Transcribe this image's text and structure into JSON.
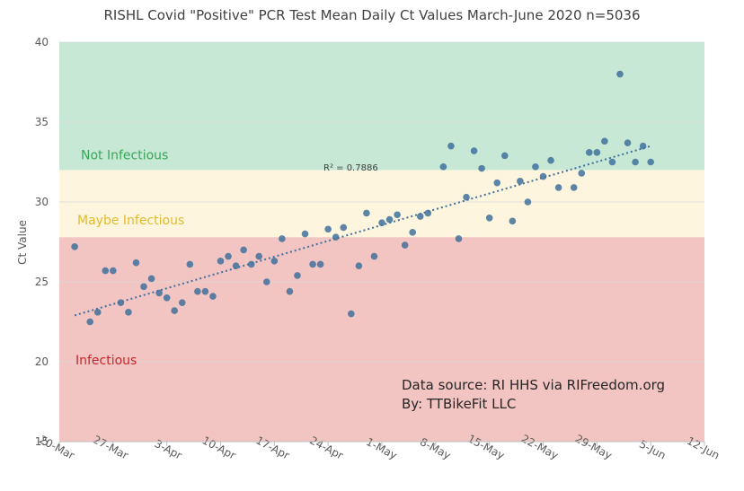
{
  "chart_data": {
    "type": "scatter",
    "title": "RISHL Covid \"Positive\" PCR Test Mean Daily Ct Values March-June 2020 n=5036",
    "y_label": "Ct Value",
    "xlim": [
      "20-Mar",
      "12-Jun"
    ],
    "xticks": [
      "20-Mar",
      "27-Mar",
      "3-Apr",
      "10-Apr",
      "17-Apr",
      "24-Apr",
      "1-May",
      "8-May",
      "15-May",
      "22-May",
      "29-May",
      "5-Jun",
      "12-Jun"
    ],
    "ylim": [
      15,
      40
    ],
    "yticks": [
      15,
      20,
      25,
      30,
      35,
      40
    ],
    "zones": [
      {
        "label": "Infectious",
        "from": 15,
        "to": 27.8,
        "color": "#f2c4c2",
        "label_color": "#c8252c"
      },
      {
        "label": "Maybe Infectious",
        "from": 27.8,
        "to": 32,
        "color": "#fdf5dd",
        "label_color": "#e2bb2a"
      },
      {
        "label": "Not Infectious",
        "from": 32,
        "to": 40,
        "color": "#c6e8d4",
        "label_color": "#3aa65a"
      }
    ],
    "series": [
      {
        "name": "Mean Daily Ct",
        "color": "#41719c",
        "x": [
          "22-Mar",
          "24-Mar",
          "25-Mar",
          "26-Mar",
          "27-Mar",
          "28-Mar",
          "29-Mar",
          "30-Mar",
          "31-Mar",
          "1-Apr",
          "2-Apr",
          "3-Apr",
          "4-Apr",
          "5-Apr",
          "6-Apr",
          "7-Apr",
          "8-Apr",
          "9-Apr",
          "10-Apr",
          "11-Apr",
          "12-Apr",
          "13-Apr",
          "14-Apr",
          "15-Apr",
          "16-Apr",
          "17-Apr",
          "18-Apr",
          "19-Apr",
          "20-Apr",
          "21-Apr",
          "22-Apr",
          "23-Apr",
          "24-Apr",
          "25-Apr",
          "26-Apr",
          "27-Apr",
          "28-Apr",
          "29-Apr",
          "30-Apr",
          "1-May",
          "2-May",
          "3-May",
          "4-May",
          "5-May",
          "6-May",
          "7-May",
          "9-May",
          "10-May",
          "11-May",
          "12-May",
          "13-May",
          "14-May",
          "15-May",
          "16-May",
          "17-May",
          "18-May",
          "19-May",
          "20-May",
          "21-May",
          "22-May",
          "23-May",
          "24-May",
          "26-May",
          "27-May",
          "28-May",
          "29-May",
          "30-May",
          "31-May",
          "1-Jun",
          "2-Jun",
          "3-Jun",
          "4-Jun",
          "5-Jun"
        ],
        "values": [
          27.2,
          22.5,
          23.1,
          25.7,
          25.7,
          23.7,
          23.1,
          26.2,
          24.7,
          25.2,
          24.3,
          24.0,
          23.2,
          23.7,
          26.1,
          24.4,
          24.4,
          24.1,
          26.3,
          26.6,
          26.0,
          27.0,
          26.1,
          26.6,
          25.0,
          26.3,
          27.7,
          24.4,
          25.4,
          28.0,
          26.1,
          26.1,
          28.3,
          27.8,
          28.4,
          23.0,
          26.0,
          29.3,
          26.6,
          28.7,
          28.9,
          29.2,
          27.3,
          28.1,
          29.1,
          29.3,
          32.2,
          33.5,
          27.7,
          30.3,
          33.2,
          32.1,
          29.0,
          31.2,
          32.9,
          28.8,
          31.3,
          30.0,
          32.2,
          31.6,
          32.6,
          30.9,
          30.9,
          31.8,
          33.1,
          33.1,
          33.8,
          32.5,
          38.0,
          33.7,
          32.5,
          33.5,
          32.5
        ]
      }
    ],
    "trendline": {
      "x": [
        "22-Mar",
        "5-Jun"
      ],
      "values": [
        22.9,
        33.5
      ],
      "color": "#41719c",
      "label": "R² = 0.7886"
    },
    "annotations": [
      "Data source: RI HHS via RIFreedom.org",
      "By: TTBikeFit LLC"
    ]
  }
}
